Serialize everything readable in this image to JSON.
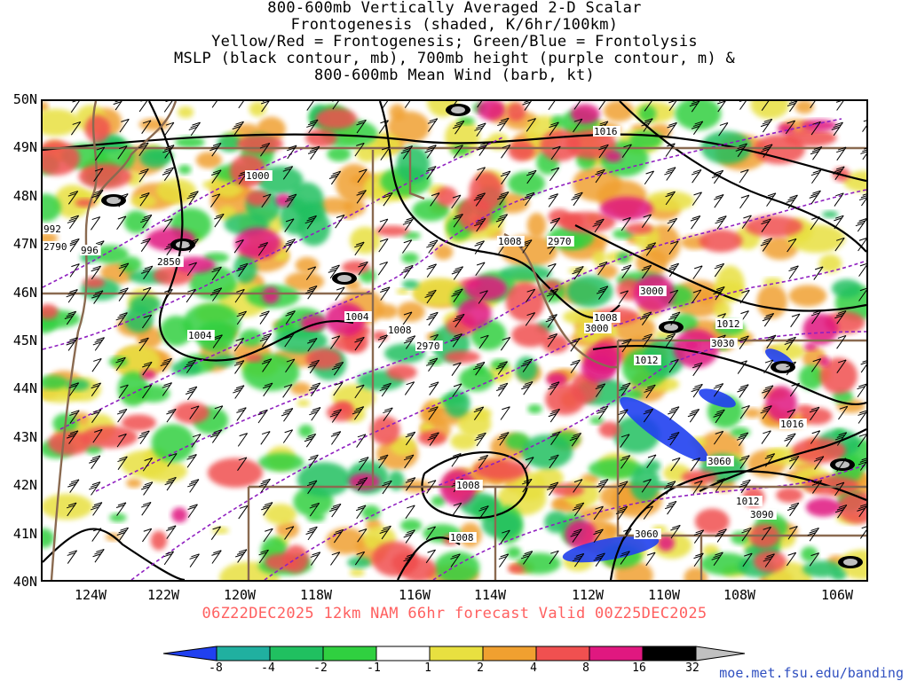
{
  "title_lines": [
    "800-600mb Vertically Averaged 2-D Scalar",
    "Frontogenesis (shaded, K/6hr/100km)",
    "Yellow/Red = Frontogenesis;  Green/Blue = Frontolysis",
    "MSLP (black contour, mb), 700mb height (purple contour, m) &",
    "800-600mb Mean Wind (barb, kt)"
  ],
  "forecast_info": "06Z22DEC2025 12km NAM 66hr forecast Valid 00Z25DEC2025",
  "source_url": "moe.met.fsu.edu/banding",
  "latitude_labels": [
    "50N",
    "49N",
    "48N",
    "47N",
    "46N",
    "45N",
    "44N",
    "43N",
    "42N",
    "41N",
    "40N"
  ],
  "longitude_labels": [
    "124W",
    "122W",
    "120W",
    "118W",
    "116W",
    "114W",
    "112W",
    "110W",
    "108W",
    "106W"
  ],
  "colorbar": {
    "tick_labels": [
      "-8",
      "-4",
      "-2",
      "-1",
      "1",
      "2",
      "4",
      "8",
      "16",
      "32"
    ],
    "colors": [
      "#2040f0",
      "#20b0a0",
      "#20c060",
      "#30d040",
      "#ffffff",
      "#e8e040",
      "#f0a030",
      "#f05050",
      "#e01880",
      "#000000",
      "#c0c0c0"
    ]
  },
  "mslp_contour_labels": [
    "1016",
    "1000",
    "992",
    "996",
    "1008",
    "1004",
    "1004",
    "1008",
    "1008",
    "1012",
    "1012",
    "1016",
    "1012",
    "1008",
    "1008"
  ],
  "height_contour_labels": [
    "2790",
    "2850",
    "2970",
    "2970",
    "3000",
    "3000",
    "3030",
    "3060",
    "3090",
    "3060"
  ],
  "palette": {
    "mslp_contour": "#000000",
    "height_contour": "#9020c0",
    "state_border": "#8a6a50",
    "barb": "#000000"
  }
}
